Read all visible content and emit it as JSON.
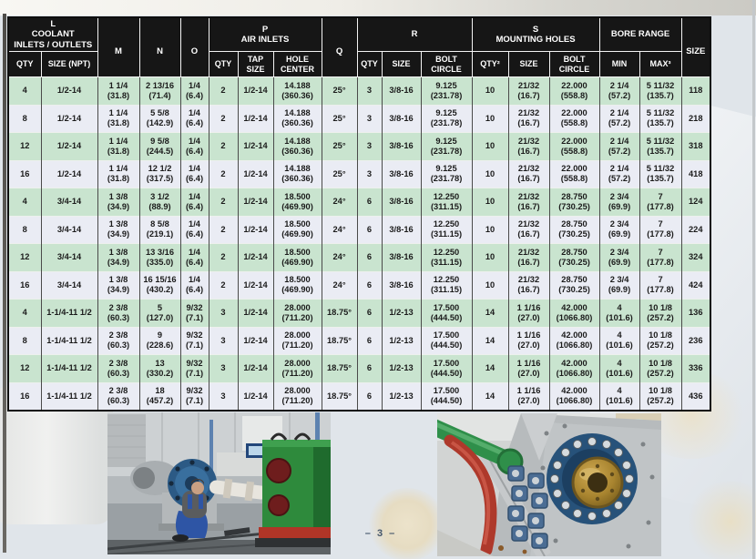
{
  "page": {
    "number_label": "– 3 –"
  },
  "colors": {
    "header_bg": "#161616",
    "row_green": "#c9e4cf",
    "row_alt": "#eaecf4",
    "page_bg": "#e0e5ea",
    "frame_dark": "#4e4c48"
  },
  "table": {
    "groups": [
      {
        "label": "L\nCOOLANT\nINLETS / OUTLETS",
        "cols": 2,
        "rows": 1
      },
      {
        "label": "M",
        "cols": 1,
        "rows": 2
      },
      {
        "label": "N",
        "cols": 1,
        "rows": 2
      },
      {
        "label": "O",
        "cols": 1,
        "rows": 2
      },
      {
        "label": "P\nAIR INLETS",
        "cols": 3,
        "rows": 1
      },
      {
        "label": "Q",
        "cols": 1,
        "rows": 2
      },
      {
        "label": "R",
        "cols": 3,
        "rows": 1
      },
      {
        "label": "S\nMOUNTING HOLES",
        "cols": 3,
        "rows": 1
      },
      {
        "label": "BORE RANGE",
        "cols": 2,
        "rows": 1
      },
      {
        "label": "SIZE",
        "cols": 1,
        "rows": 2
      }
    ],
    "subheaders": [
      "QTY",
      "SIZE (NPT)",
      "QTY",
      "TAP\nSIZE",
      "HOLE\nCENTER",
      "QTY",
      "SIZE",
      "BOLT\nCIRCLE",
      "QTY²",
      "SIZE",
      "BOLT\nCIRCLE",
      "MIN",
      "MAX³"
    ],
    "rows": [
      [
        "4",
        "1/2-14",
        "1 1/4\n(31.8)",
        "2 13/16\n(71.4)",
        "1/4\n(6.4)",
        "2",
        "1/2-14",
        "14.188\n(360.36)",
        "25°",
        "3",
        "3/8-16",
        "9.125\n(231.78)",
        "10",
        "21/32\n(16.7)",
        "22.000\n(558.8)",
        "2 1/4\n(57.2)",
        "5 11/32\n(135.7)",
        "118"
      ],
      [
        "8",
        "1/2-14",
        "1 1/4\n(31.8)",
        "5 5/8\n(142.9)",
        "1/4\n(6.4)",
        "2",
        "1/2-14",
        "14.188\n(360.36)",
        "25°",
        "3",
        "3/8-16",
        "9.125\n(231.78)",
        "10",
        "21/32\n(16.7)",
        "22.000\n(558.8)",
        "2 1/4\n(57.2)",
        "5 11/32\n(135.7)",
        "218"
      ],
      [
        "12",
        "1/2-14",
        "1 1/4\n(31.8)",
        "9 5/8\n(244.5)",
        "1/4\n(6.4)",
        "2",
        "1/2-14",
        "14.188\n(360.36)",
        "25°",
        "3",
        "3/8-16",
        "9.125\n(231.78)",
        "10",
        "21/32\n(16.7)",
        "22.000\n(558.8)",
        "2 1/4\n(57.2)",
        "5 11/32\n(135.7)",
        "318"
      ],
      [
        "16",
        "1/2-14",
        "1 1/4\n(31.8)",
        "12 1/2\n(317.5)",
        "1/4\n(6.4)",
        "2",
        "1/2-14",
        "14.188\n(360.36)",
        "25°",
        "3",
        "3/8-16",
        "9.125\n(231.78)",
        "10",
        "21/32\n(16.7)",
        "22.000\n(558.8)",
        "2 1/4\n(57.2)",
        "5 11/32\n(135.7)",
        "418"
      ],
      [
        "4",
        "3/4-14",
        "1 3/8\n(34.9)",
        "3 1/2\n(88.9)",
        "1/4\n(6.4)",
        "2",
        "1/2-14",
        "18.500\n(469.90)",
        "24°",
        "6",
        "3/8-16",
        "12.250\n(311.15)",
        "10",
        "21/32\n(16.7)",
        "28.750\n(730.25)",
        "2 3/4\n(69.9)",
        "7\n(177.8)",
        "124"
      ],
      [
        "8",
        "3/4-14",
        "1 3/8\n(34.9)",
        "8 5/8\n(219.1)",
        "1/4\n(6.4)",
        "2",
        "1/2-14",
        "18.500\n(469.90)",
        "24°",
        "6",
        "3/8-16",
        "12.250\n(311.15)",
        "10",
        "21/32\n(16.7)",
        "28.750\n(730.25)",
        "2 3/4\n(69.9)",
        "7\n(177.8)",
        "224"
      ],
      [
        "12",
        "3/4-14",
        "1 3/8\n(34.9)",
        "13 3/16\n(335.0)",
        "1/4\n(6.4)",
        "2",
        "1/2-14",
        "18.500\n(469.90)",
        "24°",
        "6",
        "3/8-16",
        "12.250\n(311.15)",
        "10",
        "21/32\n(16.7)",
        "28.750\n(730.25)",
        "2 3/4\n(69.9)",
        "7\n(177.8)",
        "324"
      ],
      [
        "16",
        "3/4-14",
        "1 3/8\n(34.9)",
        "16 15/16\n(430.2)",
        "1/4\n(6.4)",
        "2",
        "1/2-14",
        "18.500\n(469.90)",
        "24°",
        "6",
        "3/8-16",
        "12.250\n(311.15)",
        "10",
        "21/32\n(16.7)",
        "28.750\n(730.25)",
        "2 3/4\n(69.9)",
        "7\n(177.8)",
        "424"
      ],
      [
        "4",
        "1-1/4-11 1/2",
        "2 3/8\n(60.3)",
        "5\n(127.0)",
        "9/32\n(7.1)",
        "3",
        "1/2-14",
        "28.000\n(711.20)",
        "18.75°",
        "6",
        "1/2-13",
        "17.500\n(444.50)",
        "14",
        "1 1/16\n(27.0)",
        "42.000\n(1066.80)",
        "4\n(101.6)",
        "10 1/8\n(257.2)",
        "136"
      ],
      [
        "8",
        "1-1/4-11 1/2",
        "2 3/8\n(60.3)",
        "9\n(228.6)",
        "9/32\n(7.1)",
        "3",
        "1/2-14",
        "28.000\n(711.20)",
        "18.75°",
        "6",
        "1/2-13",
        "17.500\n(444.50)",
        "14",
        "1 1/16\n(27.0)",
        "42.000\n(1066.80)",
        "4\n(101.6)",
        "10 1/8\n(257.2)",
        "236"
      ],
      [
        "12",
        "1-1/4-11 1/2",
        "2 3/8\n(60.3)",
        "13\n(330.2)",
        "9/32\n(7.1)",
        "3",
        "1/2-14",
        "28.000\n(711.20)",
        "18.75°",
        "6",
        "1/2-13",
        "17.500\n(444.50)",
        "14",
        "1 1/16\n(27.0)",
        "42.000\n(1066.80)",
        "4\n(101.6)",
        "10 1/8\n(257.2)",
        "336"
      ],
      [
        "16",
        "1-1/4-11 1/2",
        "2 3/8\n(60.3)",
        "18\n(457.2)",
        "9/32\n(7.1)",
        "3",
        "1/2-14",
        "28.000\n(711.20)",
        "18.75°",
        "6",
        "1/2-13",
        "17.500\n(444.50)",
        "14",
        "1 1/16\n(27.0)",
        "42.000\n(1066.80)",
        "4\n(101.6)",
        "10 1/8\n(257.2)",
        "436"
      ]
    ]
  }
}
